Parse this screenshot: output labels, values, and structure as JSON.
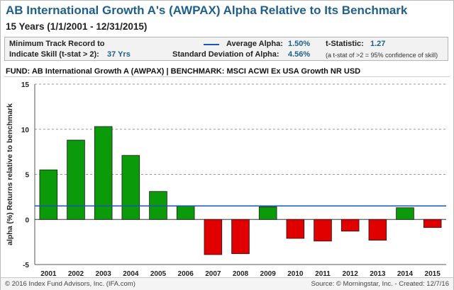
{
  "header": {
    "title": "AB International Growth A's (AWPAX) Alpha Relative to Its Benchmark",
    "subtitle": "15 Years (1/1/2001 - 12/31/2015)"
  },
  "infobox": {
    "min_track_label_1": "Minimum Track Record to",
    "min_track_label_2": "Indicate Skill (t-stat > 2):",
    "min_track_value": "37 Yrs",
    "avg_alpha_label": "Average Alpha:",
    "avg_alpha_value": "1.50%",
    "std_label": "Standard Deviation of Alpha:",
    "std_value": "4.56%",
    "tstat_label": "t-Statistic:",
    "tstat_value": "1.27",
    "tstat_note": "(a t-stat of >2 = 95% confidence of skill)"
  },
  "fund_line": "FUND: AB International Growth A (AWPAX)  | BENCHMARK: MSCI ACWI Ex USA Growth NR USD",
  "footer": {
    "left": "© 2016 Index Fund Advisors, Inc. (IFA.com)",
    "right": "Source: © Morningstar, Inc. - Created: 12/7/16"
  },
  "chart_data": {
    "type": "bar",
    "categories": [
      "2001",
      "2002",
      "2003",
      "2004",
      "2005",
      "2006",
      "2007",
      "2008",
      "2009",
      "2010",
      "2011",
      "2012",
      "2013",
      "2014",
      "2015"
    ],
    "values": [
      5.5,
      8.8,
      10.3,
      7.1,
      3.1,
      1.5,
      -3.9,
      -3.8,
      1.4,
      -2.1,
      -2.4,
      -1.3,
      -2.3,
      1.3,
      -0.9
    ],
    "ylabel": "alpha (%) Returns relative to benchmark",
    "ylim": [
      -5,
      15
    ],
    "yticks": [
      -5,
      0,
      5,
      10,
      15
    ],
    "grid": true,
    "average_line": 1.5,
    "positive_color": "#0a9a0a",
    "negative_color": "#e00000",
    "average_line_color": "#1a55b0"
  }
}
